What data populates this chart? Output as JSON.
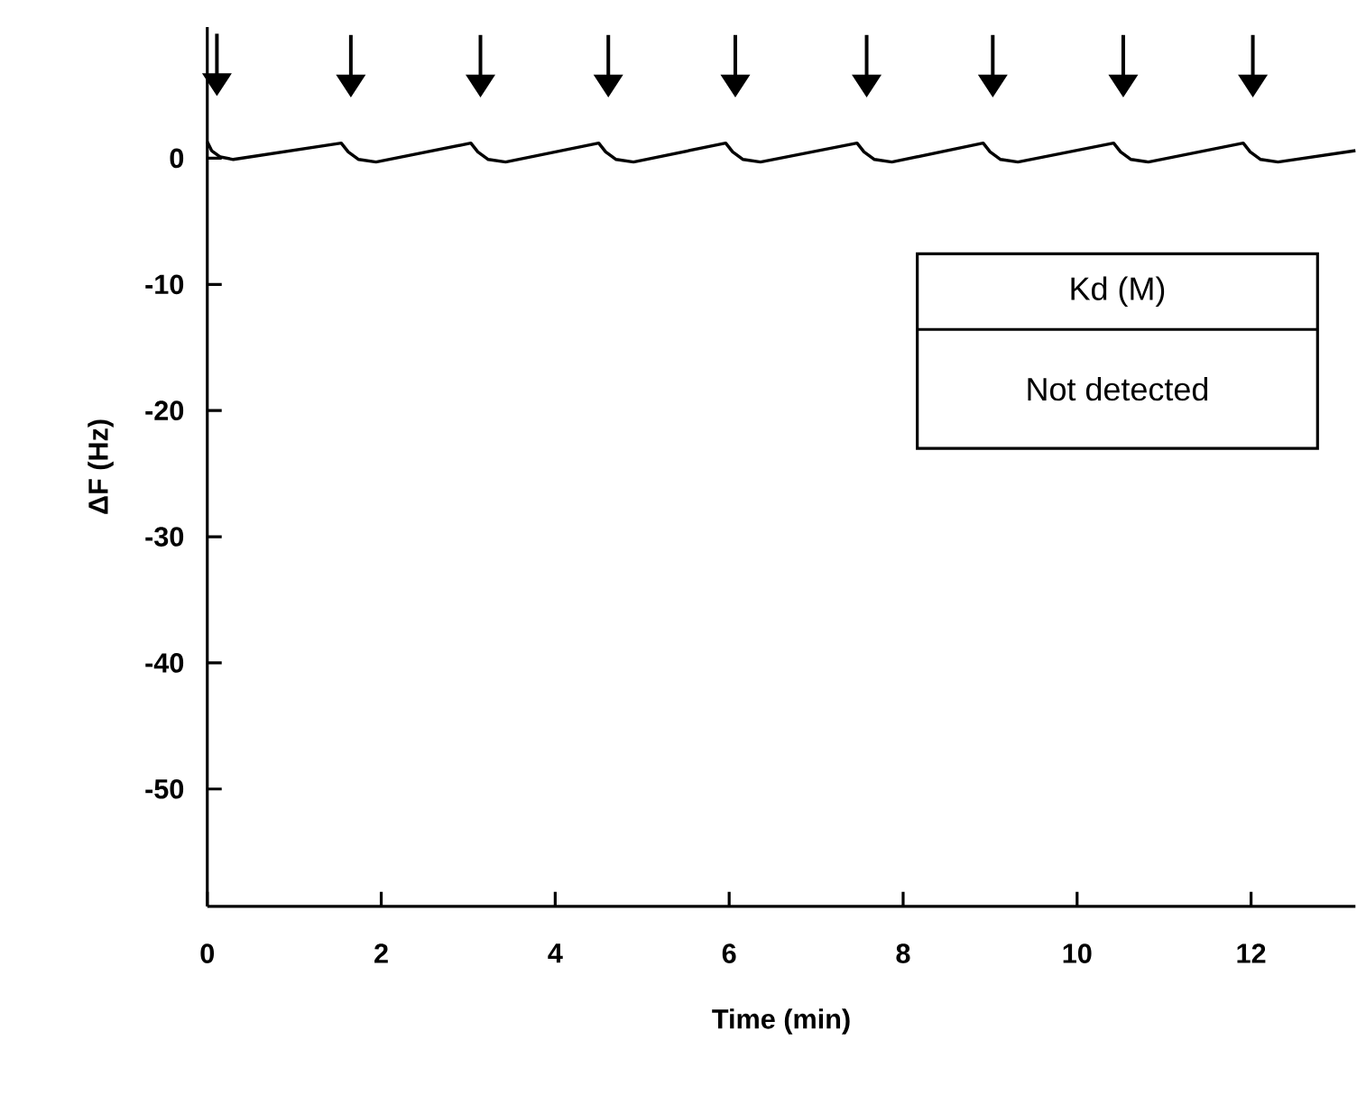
{
  "chart_data": {
    "type": "line",
    "xlabel": "Time (min)",
    "ylabel": "ΔF (Hz)",
    "xlim": [
      0,
      13.2
    ],
    "ylim": [
      -59.3,
      10.4
    ],
    "xticks": [
      0,
      2,
      4,
      6,
      8,
      10,
      12
    ],
    "yticks": [
      -50,
      -40,
      -30,
      -20,
      -10,
      0
    ],
    "grid": false,
    "marker": "none",
    "line_style": "solid",
    "series": [
      {
        "color": "#000000",
        "x": [
          0,
          0.05,
          0.15,
          0.3,
          1.54,
          1.62,
          1.74,
          1.94,
          3.03,
          3.11,
          3.23,
          3.43,
          4.5,
          4.58,
          4.7,
          4.9,
          5.96,
          6.04,
          6.16,
          6.36,
          7.47,
          7.55,
          7.67,
          7.87,
          8.92,
          9.0,
          9.12,
          9.32,
          10.42,
          10.5,
          10.62,
          10.82,
          11.91,
          11.99,
          12.11,
          12.31,
          13.2
        ],
        "values": [
          1.3,
          0.6,
          0.1,
          -0.1,
          1.2,
          0.5,
          -0.1,
          -0.3,
          1.2,
          0.5,
          -0.1,
          -0.3,
          1.2,
          0.5,
          -0.1,
          -0.3,
          1.2,
          0.5,
          -0.1,
          -0.3,
          1.2,
          0.5,
          -0.1,
          -0.3,
          1.2,
          0.5,
          -0.1,
          -0.3,
          1.2,
          0.5,
          -0.1,
          -0.3,
          1.2,
          0.5,
          -0.1,
          -0.3,
          0.6
        ]
      }
    ],
    "annotations": [
      "Kd (M)",
      "Not detected"
    ]
  }
}
